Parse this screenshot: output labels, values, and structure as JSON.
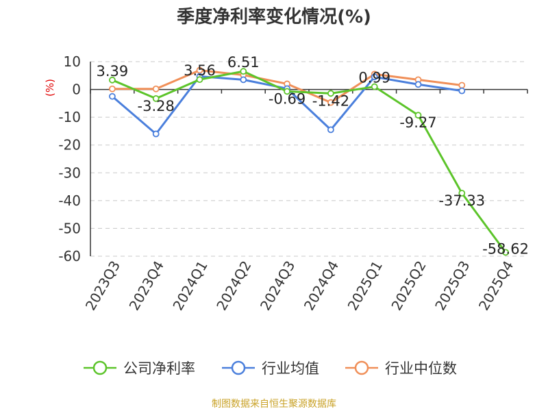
{
  "title": "季度净利率变化情况(%)",
  "source": "制图数据来自恒生聚源数据库",
  "chart_data": {
    "type": "line",
    "title": "季度净利率变化情况(%)",
    "ylabel": "(%)",
    "xlabel": "",
    "ylim": [
      -60,
      10
    ],
    "yticks": [
      10,
      0,
      -10,
      -20,
      -30,
      -40,
      -50,
      -60
    ],
    "grid": true,
    "legend_position": "bottom",
    "categories": [
      "2023Q3",
      "2023Q4",
      "2024Q1",
      "2024Q2",
      "2024Q3",
      "2024Q4",
      "2025Q1",
      "2025Q2",
      "2025Q3",
      "2025Q4"
    ],
    "series": [
      {
        "name": "公司净利率",
        "color": "#5cc42a",
        "values": [
          3.39,
          -3.28,
          3.56,
          6.51,
          -0.69,
          -1.42,
          0.99,
          -9.27,
          -37.33,
          -58.62
        ],
        "labels": [
          "3.39",
          "-3.28",
          "3.56",
          "6.51",
          "-0.69",
          "-1.42",
          "0.99",
          "-9.27",
          "-37.33",
          "-58.62"
        ]
      },
      {
        "name": "行业均值",
        "color": "#4a7fdc",
        "values": [
          -2.5,
          -16.0,
          4.7,
          3.5,
          0.3,
          -14.5,
          4.5,
          1.8,
          -0.5,
          null
        ]
      },
      {
        "name": "行业中位数",
        "color": "#f08f58",
        "values": [
          0.2,
          0.2,
          6.9,
          5.2,
          2.0,
          -4.7,
          5.5,
          3.5,
          1.5,
          null
        ]
      }
    ]
  }
}
